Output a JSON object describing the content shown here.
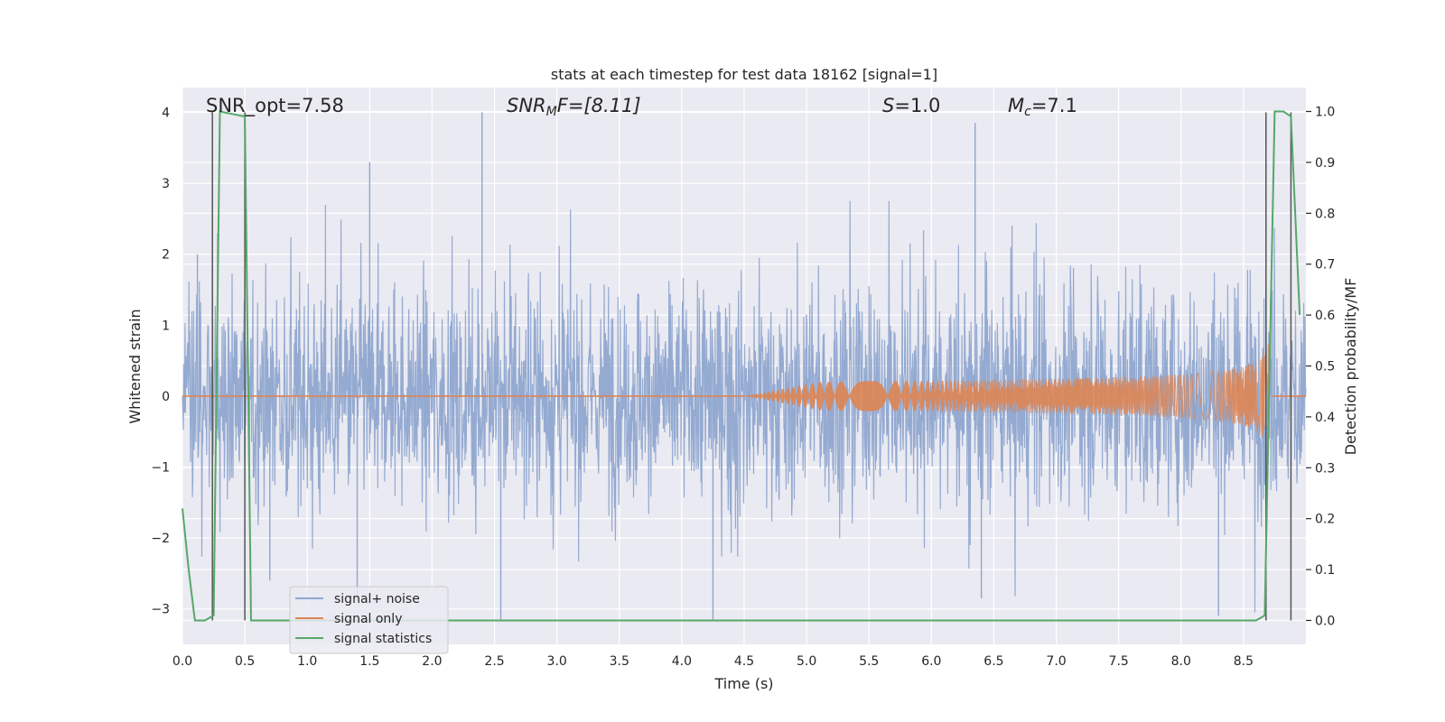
{
  "chart_data": {
    "type": "line",
    "title": "stats at each timestep for test data 18162 [signal=1]",
    "xlabel": "Time (s)",
    "ylabel": "Whitened strain",
    "ylabel_right": "Detection probability/MF",
    "xlim": [
      0.0,
      9.0
    ],
    "ylim": [
      -3.5,
      4.35
    ],
    "ylim_right": [
      -0.047,
      1.047
    ],
    "x_ticks": [
      "0.0",
      "0.5",
      "1.0",
      "1.5",
      "2.0",
      "2.5",
      "3.0",
      "3.5",
      "4.0",
      "4.5",
      "5.0",
      "5.5",
      "6.0",
      "6.5",
      "7.0",
      "7.5",
      "8.0",
      "8.5"
    ],
    "x_tick_values": [
      0.0,
      0.5,
      1.0,
      1.5,
      2.0,
      2.5,
      3.0,
      3.5,
      4.0,
      4.5,
      5.0,
      5.5,
      6.0,
      6.5,
      7.0,
      7.5,
      8.0,
      8.5
    ],
    "y_ticks": [
      "−3",
      "−2",
      "−1",
      "0",
      "1",
      "2",
      "3",
      "4"
    ],
    "y_tick_values": [
      -3,
      -2,
      -1,
      0,
      1,
      2,
      3,
      4
    ],
    "y_ticks_right": [
      "0.0",
      "0.1",
      "0.2",
      "0.3",
      "0.4",
      "0.5",
      "0.6",
      "0.7",
      "0.8",
      "0.9",
      "1.0"
    ],
    "y_tick_values_right": [
      0.0,
      0.1,
      0.2,
      0.3,
      0.4,
      0.5,
      0.6,
      0.7,
      0.8,
      0.9,
      1.0
    ],
    "annotations": {
      "snr_opt": "SNR_opt=7.58",
      "snr_mf_name": "SNR",
      "snr_mf_sub": "M",
      "snr_mf_rest": "F=[8.11]",
      "s_name": "S",
      "s_rest": "=1.0",
      "mc_name": "M",
      "mc_sub": "c",
      "mc_rest": "=7.1"
    },
    "series": [
      {
        "name": "signal+ noise",
        "color": "#8fa6cf",
        "description": "whitened noise, roughly Gaussian, amplitude ~±2 with spikes to 4",
        "peaks": [
          [
            0.12,
            2.0
          ],
          [
            1.5,
            3.3
          ],
          [
            2.4,
            4.0
          ],
          [
            6.35,
            3.85
          ],
          [
            0.7,
            -2.6
          ],
          [
            1.4,
            -2.9
          ],
          [
            2.55,
            -3.15
          ],
          [
            4.25,
            -3.15
          ],
          [
            6.4,
            -2.85
          ],
          [
            8.3,
            -3.1
          ]
        ]
      },
      {
        "name": "signal only",
        "color": "#dd8452",
        "description": "chirp signal growing from ~4.5 s, peak amplitude ~0.75 near 8.68 s",
        "chirp": {
          "start": 4.5,
          "merger": 8.68,
          "peak_amplitude": 0.75
        }
      },
      {
        "name": "signal statistics",
        "color": "#55a868",
        "axis": "right",
        "x": [
          0.0,
          0.05,
          0.1,
          0.18,
          0.25,
          0.3,
          0.5,
          0.55,
          0.6,
          8.6,
          8.67,
          8.75,
          8.82,
          8.88,
          8.95
        ],
        "y": [
          0.22,
          0.1,
          0.0,
          0.0,
          0.01,
          1.0,
          0.99,
          0.0,
          0.0,
          0.0,
          0.01,
          1.0,
          1.0,
          0.99,
          0.6
        ]
      }
    ],
    "vertical_markers": [
      0.24,
      0.5,
      8.68,
      8.88
    ],
    "marker_color": "#555555",
    "legend": {
      "placement": "lower-left",
      "entries": [
        {
          "label": "signal+ noise",
          "color": "#8fa6cf"
        },
        {
          "label": "signal only",
          "color": "#dd8452"
        },
        {
          "label": "signal statistics",
          "color": "#55a868"
        }
      ]
    },
    "style": {
      "background": "#eaeaf2",
      "grid": true,
      "grid_color": "#ffffff"
    }
  }
}
